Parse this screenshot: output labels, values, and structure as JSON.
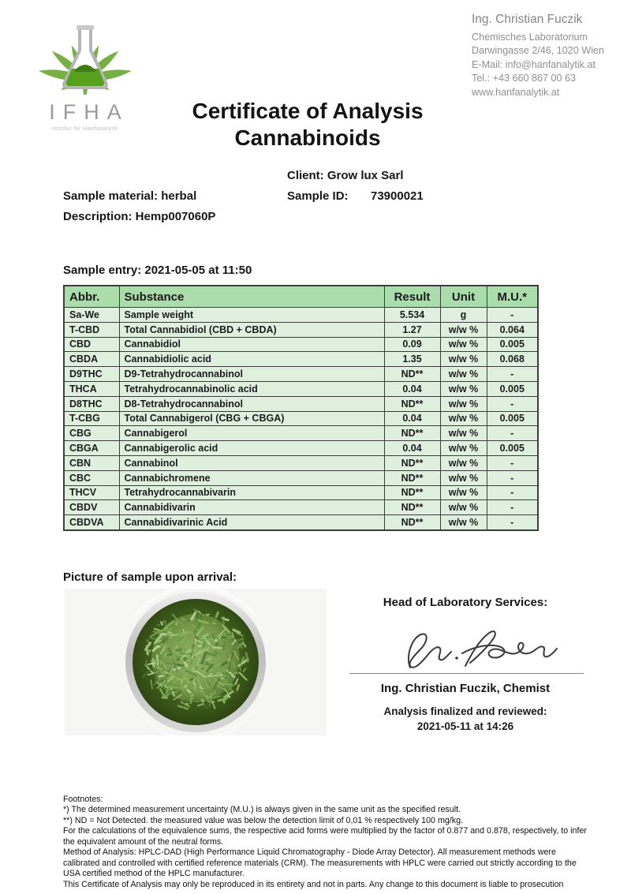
{
  "logo": {
    "acronym": "IFHA",
    "subtitle": "Institut für Hanfanalytik"
  },
  "contact": {
    "name": "Ing. Christian Fuczik",
    "lines": [
      "Chemisches Laboratorium",
      "Darwingasse 2/46, 1020 Wien",
      "E-Mail: info@hanfanalytik.at",
      "Tel.: +43 660 867 00 63",
      "www.hanfanalytik.at"
    ]
  },
  "title": {
    "line1": "Certificate of Analysis",
    "line2": "Cannabinoids"
  },
  "sample_info": {
    "client_line": "Client: Grow lux Sarl",
    "material_line": "Sample material: herbal",
    "sample_id_label": "Sample ID:",
    "sample_id_value": "73900021",
    "description_line": "Description: Hemp007060P",
    "sample_entry_line": "Sample entry: 2021-05-05 at 11:50"
  },
  "table": {
    "headers": [
      "Abbr.",
      "Substance",
      "Result",
      "Unit",
      "M.U.*"
    ],
    "rows": [
      [
        "Sa-We",
        "Sample weight",
        "5.534",
        "g",
        "-"
      ],
      [
        "T-CBD",
        "Total Cannabidiol (CBD + CBDA)",
        "1.27",
        "w/w %",
        "0.064"
      ],
      [
        "CBD",
        "Cannabidiol",
        "0.09",
        "w/w %",
        "0.005"
      ],
      [
        "CBDA",
        "Cannabidiolic acid",
        "1.35",
        "w/w %",
        "0.068"
      ],
      [
        "D9THC",
        "D9-Tetrahydrocannabinol",
        "ND**",
        "w/w %",
        "-"
      ],
      [
        "THCA",
        "Tetrahydrocannabinolic acid",
        "0.04",
        "w/w %",
        "0.005"
      ],
      [
        "D8THC",
        "D8-Tetrahydrocannabinol",
        "ND**",
        "w/w %",
        "-"
      ],
      [
        "T-CBG",
        "Total Cannabigerol (CBG + CBGA)",
        "0.04",
        "w/w %",
        "0.005"
      ],
      [
        "CBG",
        "Cannabigerol",
        "ND**",
        "w/w %",
        "-"
      ],
      [
        "CBGA",
        "Cannabigerolic acid",
        "0.04",
        "w/w %",
        "0.005"
      ],
      [
        "CBN",
        "Cannabinol",
        "ND**",
        "w/w %",
        "-"
      ],
      [
        "CBC",
        "Cannabichromene",
        "ND**",
        "w/w %",
        "-"
      ],
      [
        "THCV",
        "Tetrahydrocannabivarin",
        "ND**",
        "w/w %",
        "-"
      ],
      [
        "CBDV",
        "Cannabidivarin",
        "ND**",
        "w/w %",
        "-"
      ],
      [
        "CBDVA",
        "Cannabidivarinic Acid",
        "ND**",
        "w/w %",
        "-"
      ]
    ]
  },
  "picture_label": "Picture of sample upon arrival:",
  "signature_block": {
    "heading": "Head of Laboratory Services:",
    "signer": "Ing. Christian Fuczik, Chemist",
    "finalized_label": "Analysis finalized and reviewed:",
    "finalized_date": "2021-05-11 at 14:26"
  },
  "footnotes": [
    "Footnotes:",
    "*) The determined measurement uncertainty (M.U.) is always given in the same unit as the specified result.",
    "**) ND = Not Detected. the measured value was below the detection limit of 0,01 % respectively 100 mg/kg.",
    "For the calculations of the equivalence sums, the respective acid forms were multiplied by the factor of 0.877 and 0.878, respectively, to infer the equivalent amount of the neutral forms.",
    "Method of Analysis: HPLC-DAD (High Performance Liquid Chromatography - Diode Array Detector). All measurement methods were calibrated and controlled with certified reference materials (CRM). The measurements with HPLC were carried out strictly according to the USA certified method of the HPLC manufacturer.",
    "This Certificate of Analysis may only be reproduced in its entirety and not in parts. Any change to this document is liable to prosecution"
  ],
  "colors": {
    "table_header_green": "#abdcab",
    "table_row_green": "#dff0df",
    "table_border": "#3d3d3d",
    "logo_green": "#76b043",
    "flask_liquid_green": "#57a01d",
    "contact_gray": "#8f8f8f"
  }
}
